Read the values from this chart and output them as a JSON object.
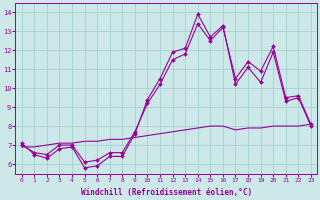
{
  "xlabel": "Windchill (Refroidissement éolien,°C)",
  "bg_color": "#cce8e8",
  "grid_color": "#99cccc",
  "line_color": "#990099",
  "x_ticks": [
    0,
    1,
    2,
    3,
    4,
    5,
    6,
    7,
    8,
    9,
    10,
    11,
    12,
    13,
    14,
    15,
    16,
    17,
    18,
    19,
    20,
    21,
    22,
    23
  ],
  "y_ticks": [
    6,
    7,
    8,
    9,
    10,
    11,
    12,
    13,
    14
  ],
  "ylim": [
    5.5,
    14.5
  ],
  "xlim": [
    -0.5,
    23.5
  ],
  "series1_x": [
    0,
    1,
    2,
    3,
    4,
    5,
    6,
    7,
    8,
    9,
    10,
    11,
    12,
    13,
    14,
    15,
    16,
    17,
    18,
    19,
    20,
    21,
    22,
    23
  ],
  "series1_y": [
    7.1,
    6.5,
    6.3,
    6.8,
    6.9,
    5.8,
    5.9,
    6.4,
    6.4,
    7.6,
    9.4,
    10.5,
    11.9,
    12.1,
    13.9,
    12.7,
    13.3,
    10.2,
    11.1,
    10.3,
    11.9,
    9.3,
    9.5,
    8.0
  ],
  "series2_x": [
    0,
    1,
    2,
    3,
    4,
    5,
    6,
    7,
    8,
    9,
    10,
    11,
    12,
    13,
    14,
    15,
    16,
    17,
    18,
    19,
    20,
    21,
    22,
    23
  ],
  "series2_y": [
    7.0,
    6.6,
    6.5,
    7.0,
    7.0,
    6.1,
    6.2,
    6.6,
    6.6,
    7.7,
    9.2,
    10.2,
    11.5,
    11.8,
    13.4,
    12.5,
    13.2,
    10.5,
    11.4,
    10.9,
    12.2,
    9.5,
    9.6,
    8.1
  ],
  "series3_x": [
    0,
    1,
    2,
    3,
    4,
    5,
    6,
    7,
    8,
    9,
    10,
    11,
    12,
    13,
    14,
    15,
    16,
    17,
    18,
    19,
    20,
    21,
    22,
    23
  ],
  "series3_y": [
    6.9,
    6.9,
    7.0,
    7.1,
    7.1,
    7.2,
    7.2,
    7.3,
    7.3,
    7.4,
    7.5,
    7.6,
    7.7,
    7.8,
    7.9,
    8.0,
    8.0,
    7.8,
    7.9,
    7.9,
    8.0,
    8.0,
    8.0,
    8.1
  ]
}
